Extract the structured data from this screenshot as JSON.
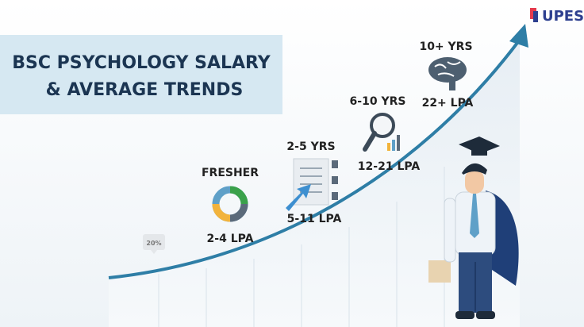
{
  "logo": {
    "text": "UPES"
  },
  "title": {
    "line1": "BSC PSYCHOLOGY SALARY",
    "line2": "& AVERAGE TRENDS"
  },
  "badge": "20%",
  "stages": [
    {
      "experience": "FRESHER",
      "salary": "2-4 LPA"
    },
    {
      "experience": "2-5 YRS",
      "salary": "5-11 LPA"
    },
    {
      "experience": "6-10 YRS",
      "salary": "12-21 LPA"
    },
    {
      "experience": "10+ YRS",
      "salary": "22+ LPA"
    }
  ]
}
